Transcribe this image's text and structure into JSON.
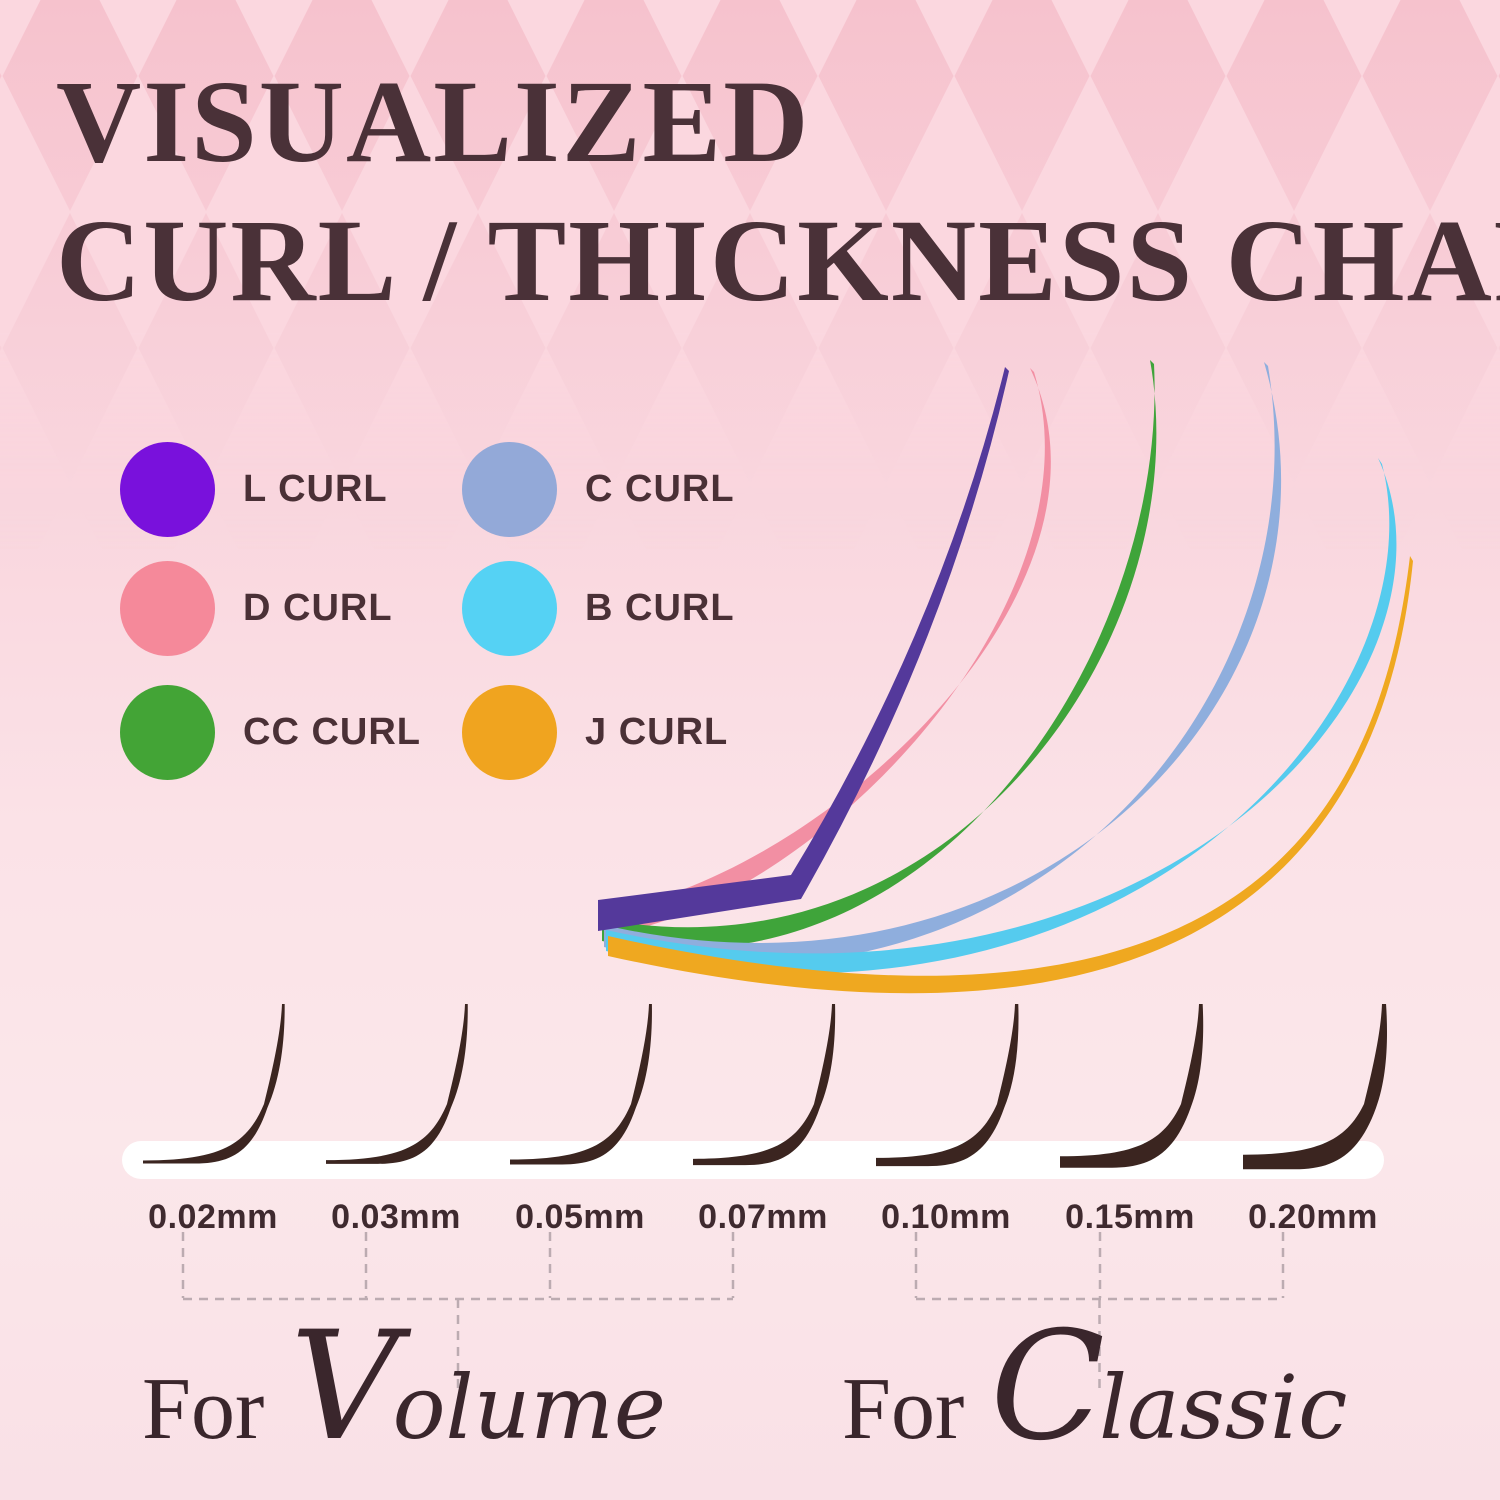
{
  "title": {
    "line1": "VISUALIZED",
    "line2": "CURL / THICKNESS CHART"
  },
  "legend": {
    "items": [
      {
        "id": "l",
        "label": "L CURL",
        "color": "#7911dc"
      },
      {
        "id": "c",
        "label": "C CURL",
        "color": "#93a9d8"
      },
      {
        "id": "d",
        "label": "D CURL",
        "color": "#f5899a"
      },
      {
        "id": "b",
        "label": "B CURL",
        "color": "#55d2f4"
      },
      {
        "id": "cc",
        "label": "CC CURL",
        "color": "#43a436"
      },
      {
        "id": "j",
        "label": "J CURL",
        "color": "#f0a41f"
      }
    ]
  },
  "thickness": {
    "labels": [
      "0.02mm",
      "0.03mm",
      "0.05mm",
      "0.07mm",
      "0.10mm",
      "0.15mm",
      "0.20mm"
    ]
  },
  "captions": {
    "volume": {
      "for": "For",
      "initial": "V",
      "rest": "olume"
    },
    "classic": {
      "for": "For",
      "initial": "C",
      "rest": "lassic"
    }
  },
  "chart_data": {
    "type": "line",
    "title": "VISUALIZED CURL / THICKNESS CHART",
    "series": [
      {
        "id": "l",
        "name": "L CURL",
        "legend_color": "#7911dc",
        "line_color": "#54399b"
      },
      {
        "id": "d",
        "name": "D CURL",
        "legend_color": "#f5899a",
        "line_color": "#f28fa3"
      },
      {
        "id": "cc",
        "name": "CC CURL",
        "legend_color": "#43a436",
        "line_color": "#3fa43a"
      },
      {
        "id": "c",
        "name": "C CURL",
        "legend_color": "#93a9d8",
        "line_color": "#8faedd"
      },
      {
        "id": "b",
        "name": "B CURL",
        "legend_color": "#55d2f4",
        "line_color": "#55cbee"
      },
      {
        "id": "j",
        "name": "J CURL",
        "legend_color": "#f0a41f",
        "line_color": "#efa820"
      }
    ],
    "thickness_mm": [
      0.02,
      0.03,
      0.05,
      0.07,
      0.1,
      0.15,
      0.2
    ],
    "lash_color": "#3b2520",
    "thickness_groups": [
      {
        "label": "For Volume",
        "members": [
          "0.02mm",
          "0.03mm",
          "0.05mm",
          "0.07mm"
        ]
      },
      {
        "label": "For Classic",
        "members": [
          "0.10mm",
          "0.15mm",
          "0.20mm"
        ]
      }
    ],
    "legend_position": "upper-left",
    "grid": false
  }
}
